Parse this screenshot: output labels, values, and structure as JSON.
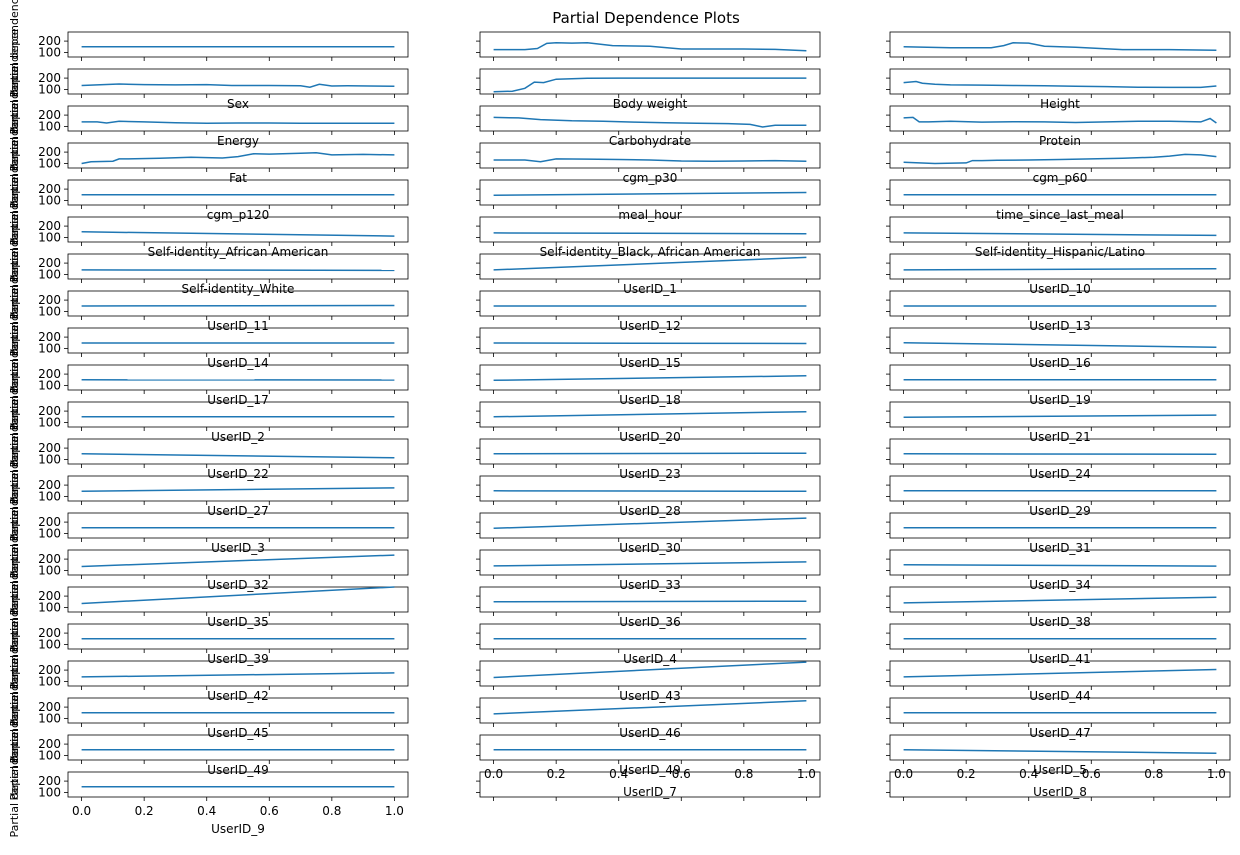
{
  "figure": {
    "title": "Partial Dependence Plots",
    "line_color": "#1f77b4",
    "ylabel": "Partial dependence"
  },
  "chart_data": {
    "type": "line",
    "layout": "21 rows x 3 columns of small multiples, shared y axis per row",
    "ylim": [
      60,
      280
    ],
    "yticks": [
      100,
      200
    ],
    "grid": false,
    "legend": "none",
    "panels": [
      {
        "xlabel": "",
        "x": [
          0,
          1
        ],
        "y": [
          150,
          150
        ]
      },
      {
        "xlabel": "",
        "x": [
          0,
          0.06,
          0.1,
          0.14,
          0.17,
          0.2,
          0.25,
          0.3,
          0.38,
          0.45,
          0.5,
          0.6,
          0.7,
          0.8,
          0.9,
          1.0
        ],
        "y": [
          125,
          125,
          125,
          135,
          180,
          185,
          182,
          185,
          160,
          157,
          155,
          130,
          130,
          130,
          127,
          115
        ]
      },
      {
        "xlabel": "",
        "x": [
          0,
          0.15,
          0.28,
          0.32,
          0.35,
          0.4,
          0.45,
          0.55,
          0.7,
          0.85,
          1.0
        ],
        "y": [
          150,
          142,
          142,
          160,
          185,
          182,
          155,
          145,
          125,
          125,
          120
        ]
      },
      {
        "xlabel": "Sex",
        "x": [
          0,
          0.05,
          0.12,
          0.2,
          0.3,
          0.4,
          0.48,
          0.6,
          0.7,
          0.73,
          0.76,
          0.8,
          0.85,
          0.92,
          1.0
        ],
        "y": [
          135,
          140,
          148,
          143,
          140,
          143,
          135,
          135,
          132,
          120,
          145,
          130,
          132,
          130,
          128
        ]
      },
      {
        "xlabel": "Body weight",
        "x": [
          0,
          0.06,
          0.1,
          0.13,
          0.16,
          0.2,
          0.25,
          0.3,
          0.4,
          0.55,
          0.7,
          0.85,
          1.0
        ],
        "y": [
          80,
          85,
          110,
          165,
          160,
          190,
          195,
          198,
          200,
          200,
          200,
          200,
          200
        ]
      },
      {
        "xlabel": "Height",
        "x": [
          0,
          0.04,
          0.06,
          0.1,
          0.15,
          0.25,
          0.35,
          0.45,
          0.55,
          0.65,
          0.75,
          0.85,
          0.95,
          1.0
        ],
        "y": [
          160,
          170,
          155,
          145,
          140,
          138,
          135,
          132,
          128,
          125,
          120,
          118,
          118,
          130
        ]
      },
      {
        "xlabel": "Energy",
        "x": [
          0,
          0.05,
          0.08,
          0.12,
          0.2,
          0.3,
          0.4,
          0.5,
          0.6,
          0.7,
          0.8,
          0.9,
          1.0
        ],
        "y": [
          140,
          140,
          130,
          145,
          140,
          132,
          128,
          130,
          130,
          128,
          128,
          128,
          128
        ]
      },
      {
        "xlabel": "Carbohydrate",
        "x": [
          0,
          0.08,
          0.15,
          0.25,
          0.35,
          0.45,
          0.55,
          0.65,
          0.75,
          0.82,
          0.86,
          0.9,
          1.0
        ],
        "y": [
          180,
          175,
          160,
          150,
          145,
          138,
          132,
          128,
          125,
          118,
          95,
          110,
          110
        ]
      },
      {
        "xlabel": "Protein",
        "x": [
          0,
          0.03,
          0.05,
          0.08,
          0.15,
          0.25,
          0.35,
          0.45,
          0.55,
          0.65,
          0.75,
          0.85,
          0.95,
          0.98,
          1.0
        ],
        "y": [
          175,
          180,
          140,
          140,
          145,
          138,
          142,
          140,
          135,
          140,
          145,
          145,
          140,
          170,
          130
        ]
      },
      {
        "xlabel": "Fat",
        "x": [
          0,
          0.03,
          0.1,
          0.12,
          0.15,
          0.25,
          0.35,
          0.45,
          0.5,
          0.55,
          0.6,
          0.7,
          0.75,
          0.8,
          0.9,
          1.0
        ],
        "y": [
          100,
          115,
          120,
          140,
          140,
          145,
          155,
          148,
          160,
          185,
          182,
          190,
          195,
          175,
          180,
          175
        ]
      },
      {
        "xlabel": "cgm_p30",
        "x": [
          0,
          0.1,
          0.15,
          0.2,
          0.3,
          0.4,
          0.5,
          0.6,
          0.7,
          0.8,
          0.9,
          1.0
        ],
        "y": [
          130,
          130,
          115,
          140,
          138,
          135,
          130,
          122,
          120,
          122,
          125,
          120
        ]
      },
      {
        "xlabel": "cgm_p60",
        "x": [
          0,
          0.1,
          0.2,
          0.22,
          0.25,
          0.3,
          0.4,
          0.5,
          0.6,
          0.7,
          0.8,
          0.85,
          0.9,
          0.95,
          1.0
        ],
        "y": [
          110,
          100,
          105,
          125,
          125,
          128,
          130,
          135,
          140,
          145,
          155,
          165,
          180,
          175,
          160
        ]
      },
      {
        "xlabel": "cgm_p120",
        "x": [
          0,
          1
        ],
        "y": [
          150,
          150
        ]
      },
      {
        "xlabel": "meal_hour",
        "x": [
          0,
          1
        ],
        "y": [
          145,
          170
        ]
      },
      {
        "xlabel": "time_since_last_meal",
        "x": [
          0,
          1
        ],
        "y": [
          150,
          150
        ]
      },
      {
        "xlabel": "Self-identity_African American",
        "x": [
          0,
          1
        ],
        "y": [
          150,
          112
        ]
      },
      {
        "xlabel": "Self-identity_Black, African American",
        "x": [
          0,
          1
        ],
        "y": [
          140,
          132
        ]
      },
      {
        "xlabel": "Self-identity_Hispanic/Latino",
        "x": [
          0,
          1
        ],
        "y": [
          140,
          118
        ]
      },
      {
        "xlabel": "Self-identity_White",
        "x": [
          0,
          1
        ],
        "y": [
          140,
          136
        ]
      },
      {
        "xlabel": "UserID_1",
        "x": [
          0,
          1
        ],
        "y": [
          140,
          250
        ]
      },
      {
        "xlabel": "UserID_10",
        "x": [
          0,
          1
        ],
        "y": [
          140,
          150
        ]
      },
      {
        "xlabel": "UserID_11",
        "x": [
          0,
          1
        ],
        "y": [
          148,
          152
        ]
      },
      {
        "xlabel": "UserID_12",
        "x": [
          0,
          1
        ],
        "y": [
          148,
          148
        ]
      },
      {
        "xlabel": "UserID_13",
        "x": [
          0,
          1
        ],
        "y": [
          148,
          148
        ]
      },
      {
        "xlabel": "UserID_14",
        "x": [
          0,
          1
        ],
        "y": [
          148,
          148
        ]
      },
      {
        "xlabel": "UserID_15",
        "x": [
          0,
          1
        ],
        "y": [
          148,
          144
        ]
      },
      {
        "xlabel": "UserID_16",
        "x": [
          0,
          1
        ],
        "y": [
          150,
          110
        ]
      },
      {
        "xlabel": "UserID_17",
        "x": [
          0,
          1
        ],
        "y": [
          150,
          148
        ]
      },
      {
        "xlabel": "UserID_18",
        "x": [
          0,
          1
        ],
        "y": [
          145,
          185
        ]
      },
      {
        "xlabel": "UserID_19",
        "x": [
          0,
          1
        ],
        "y": [
          150,
          150
        ]
      },
      {
        "xlabel": "UserID_2",
        "x": [
          0,
          1
        ],
        "y": [
          150,
          150
        ]
      },
      {
        "xlabel": "UserID_20",
        "x": [
          0,
          1
        ],
        "y": [
          150,
          195
        ]
      },
      {
        "xlabel": "UserID_21",
        "x": [
          0,
          1
        ],
        "y": [
          145,
          165
        ]
      },
      {
        "xlabel": "UserID_22",
        "x": [
          0,
          1
        ],
        "y": [
          150,
          115
        ]
      },
      {
        "xlabel": "UserID_23",
        "x": [
          0,
          1
        ],
        "y": [
          150,
          155
        ]
      },
      {
        "xlabel": "UserID_24",
        "x": [
          0,
          1
        ],
        "y": [
          150,
          145
        ]
      },
      {
        "xlabel": "UserID_27",
        "x": [
          0,
          1
        ],
        "y": [
          145,
          175
        ]
      },
      {
        "xlabel": "UserID_28",
        "x": [
          0,
          1
        ],
        "y": [
          150,
          145
        ]
      },
      {
        "xlabel": "UserID_29",
        "x": [
          0,
          1
        ],
        "y": [
          150,
          150
        ]
      },
      {
        "xlabel": "UserID_3",
        "x": [
          0,
          1
        ],
        "y": [
          150,
          150
        ]
      },
      {
        "xlabel": "UserID_30",
        "x": [
          0,
          1
        ],
        "y": [
          145,
          235
        ]
      },
      {
        "xlabel": "UserID_31",
        "x": [
          0,
          1
        ],
        "y": [
          150,
          150
        ]
      },
      {
        "xlabel": "UserID_32",
        "x": [
          0,
          1
        ],
        "y": [
          135,
          235
        ]
      },
      {
        "xlabel": "UserID_33",
        "x": [
          0,
          1
        ],
        "y": [
          140,
          175
        ]
      },
      {
        "xlabel": "UserID_34",
        "x": [
          0,
          1
        ],
        "y": [
          150,
          138
        ]
      },
      {
        "xlabel": "UserID_35",
        "x": [
          0,
          1
        ],
        "y": [
          135,
          280
        ]
      },
      {
        "xlabel": "UserID_36",
        "x": [
          0,
          1
        ],
        "y": [
          150,
          155
        ]
      },
      {
        "xlabel": "UserID_38",
        "x": [
          0,
          1
        ],
        "y": [
          140,
          190
        ]
      },
      {
        "xlabel": "UserID_39",
        "x": [
          0,
          1
        ],
        "y": [
          150,
          150
        ]
      },
      {
        "xlabel": "UserID_4",
        "x": [
          0,
          1
        ],
        "y": [
          150,
          150
        ]
      },
      {
        "xlabel": "UserID_41",
        "x": [
          0,
          1
        ],
        "y": [
          150,
          150
        ]
      },
      {
        "xlabel": "UserID_42",
        "x": [
          0,
          1
        ],
        "y": [
          140,
          175
        ]
      },
      {
        "xlabel": "UserID_43",
        "x": [
          0,
          1
        ],
        "y": [
          135,
          270
        ]
      },
      {
        "xlabel": "UserID_44",
        "x": [
          0,
          1
        ],
        "y": [
          140,
          205
        ]
      },
      {
        "xlabel": "UserID_45",
        "x": [
          0,
          1
        ],
        "y": [
          150,
          150
        ]
      },
      {
        "xlabel": "UserID_46",
        "x": [
          0,
          1
        ],
        "y": [
          140,
          255
        ]
      },
      {
        "xlabel": "UserID_47",
        "x": [
          0,
          1
        ],
        "y": [
          150,
          150
        ]
      },
      {
        "xlabel": "UserID_49",
        "x": [
          0,
          1
        ],
        "y": [
          150,
          150
        ]
      },
      {
        "xlabel": "UserID_49",
        "x": [
          0,
          1
        ],
        "y": [
          150,
          150
        ]
      },
      {
        "xlabel": "UserID_5",
        "x": [
          0,
          1
        ],
        "y": [
          150,
          120
        ]
      },
      {
        "xlabel": "UserID_9",
        "xticks": [
          0.0,
          0.2,
          0.4,
          0.6,
          0.8,
          1.0
        ],
        "x": [
          0,
          1
        ],
        "y": [
          150,
          150
        ]
      },
      {
        "xlabel": "UserID_7",
        "xticks": [
          0.0,
          0.2,
          0.4,
          0.6,
          0.8,
          1.0
        ],
        "x": [
          0,
          1
        ],
        "y": [],
        "hidden_axes": true
      },
      {
        "xlabel": "UserID_8",
        "xticks": [
          0.0,
          0.2,
          0.4,
          0.6,
          0.8,
          1.0
        ],
        "x": [
          0,
          1
        ],
        "y": [],
        "hidden_axes": true
      }
    ],
    "bottom_labels": [
      {
        "text": "UserID_9",
        "xticks": [
          "0.0",
          "0.2",
          "0.4",
          "0.6",
          "0.8",
          "1.0"
        ]
      },
      {
        "text": "UserID_7",
        "xticks": [
          "0.0",
          "0.2",
          "0.4",
          "0.6",
          "0.8",
          "1.0"
        ]
      },
      {
        "text": "UserID_8",
        "xticks": [
          "0.0",
          "0.2",
          "0.4",
          "0.6",
          "0.8",
          "1.0"
        ]
      }
    ]
  }
}
